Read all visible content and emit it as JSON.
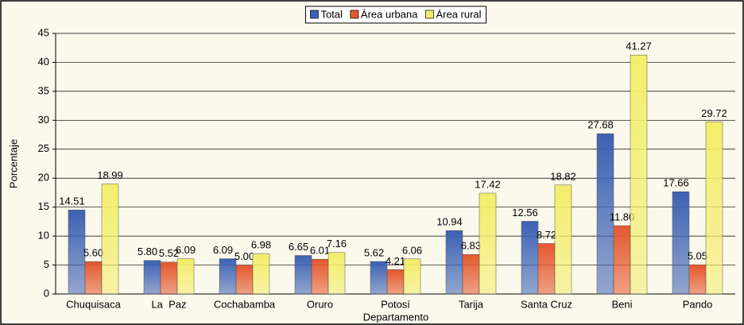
{
  "chart_data": {
    "type": "bar",
    "xlabel": "Departamento",
    "ylabel": "Porcentaje",
    "categories": [
      "Chuquisaca",
      "La  Paz",
      "Cochabamba",
      "Oruro",
      "Potosí",
      "Tarija",
      "Santa Cruz",
      "Beni",
      "Pando"
    ],
    "series": [
      {
        "name": "Total",
        "color": "#3d62b4",
        "values": [
          14.51,
          5.8,
          6.09,
          6.65,
          5.62,
          10.94,
          12.56,
          27.68,
          17.66
        ],
        "value_labels": [
          "14.51",
          "5.80",
          "6.09",
          "6.65",
          "5.62",
          "10.94",
          "12.56",
          "27.68",
          "17.66"
        ]
      },
      {
        "name": "Área urbana",
        "color": "#e4582e",
        "values": [
          5.6,
          5.52,
          5.0,
          6.01,
          4.21,
          6.83,
          8.72,
          11.8,
          5.05
        ],
        "value_labels": [
          "5.60",
          "5.52",
          "5.00",
          "6.01",
          "4.21",
          "6.83",
          "8.72",
          "11.80",
          "5.05"
        ]
      },
      {
        "name": "Área rural",
        "color": "#f3ee6a",
        "values": [
          18.99,
          6.09,
          6.98,
          7.16,
          6.06,
          17.42,
          18.82,
          41.27,
          29.72
        ],
        "value_labels": [
          "18.99",
          "6.09",
          "6.98",
          "7.16",
          "6.06",
          "17.42",
          "18.82",
          "41.27",
          "29.72"
        ]
      }
    ],
    "ylim": [
      0,
      45
    ],
    "yticks": [
      0,
      5,
      10,
      15,
      20,
      25,
      30,
      35,
      40,
      45
    ],
    "grid": true,
    "legend": "top"
  }
}
